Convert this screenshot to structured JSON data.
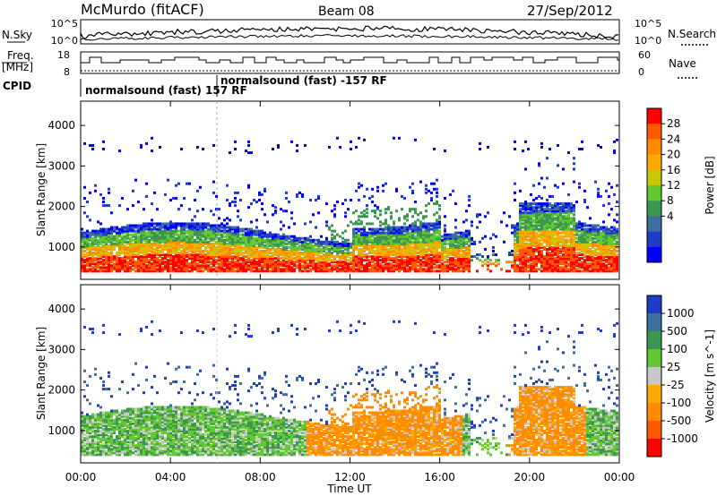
{
  "header": {
    "station": "McMurdo (fitACF)",
    "beam": "Beam 08",
    "date": "27/Sep/2012"
  },
  "top_panels": {
    "nsky_label": "N.Sky",
    "nsky_ticks": [
      "10^5",
      "10^0"
    ],
    "nsearch_label": "N.Search",
    "nsearch_ticks": [
      "10^5",
      "10^0"
    ],
    "freq_label_1": "Freq.",
    "freq_label_2": "[MHz]",
    "freq_ticks": [
      "18",
      "8"
    ],
    "nave_label": "Nave",
    "nave_ticks": [
      "60",
      "0"
    ],
    "cpid_label": "CPID",
    "cpid_segments": [
      "normalsound (fast) 157 RF",
      "normalsound (fast) -157 RF"
    ]
  },
  "chart_data": [
    {
      "type": "heatmap",
      "title": "",
      "xlabel": "Time UT",
      "ylabel": "Slant Range [km]",
      "x_ticks": [
        "00:00",
        "04:00",
        "08:00",
        "12:00",
        "16:00",
        "20:00",
        "00:00"
      ],
      "y_ticks": [
        1000,
        2000,
        3000,
        4000
      ],
      "ylim": [
        200,
        4600
      ],
      "colorbar": {
        "label": "Power [dB]",
        "ticks": [
          "28",
          "24",
          "20",
          "16",
          "12",
          "8",
          "4"
        ],
        "colors": [
          "#ff0000",
          "#ff5a00",
          "#ff8c00",
          "#ffaa00",
          "#c8c800",
          "#64c832",
          "#3c9650",
          "#3c6ea0",
          "#1e3cc8",
          "#0000ff"
        ]
      }
    },
    {
      "type": "heatmap",
      "title": "",
      "xlabel": "Time UT",
      "ylabel": "Slant Range [km]",
      "x_ticks": [
        "00:00",
        "04:00",
        "08:00",
        "12:00",
        "16:00",
        "20:00",
        "00:00"
      ],
      "y_ticks": [
        1000,
        2000,
        3000,
        4000
      ],
      "ylim": [
        200,
        4600
      ],
      "colorbar": {
        "label": "Velocity [m s^-1]",
        "ticks": [
          "1000",
          "500",
          "100",
          "25",
          "-25",
          "-100",
          "-500",
          "-1000"
        ],
        "colors": [
          "#1e3cc8",
          "#3c6ea0",
          "#3c9650",
          "#64c832",
          "#c8c8c8",
          "#ffaa00",
          "#ff8c00",
          "#ff5a00",
          "#ff0000"
        ]
      }
    }
  ]
}
